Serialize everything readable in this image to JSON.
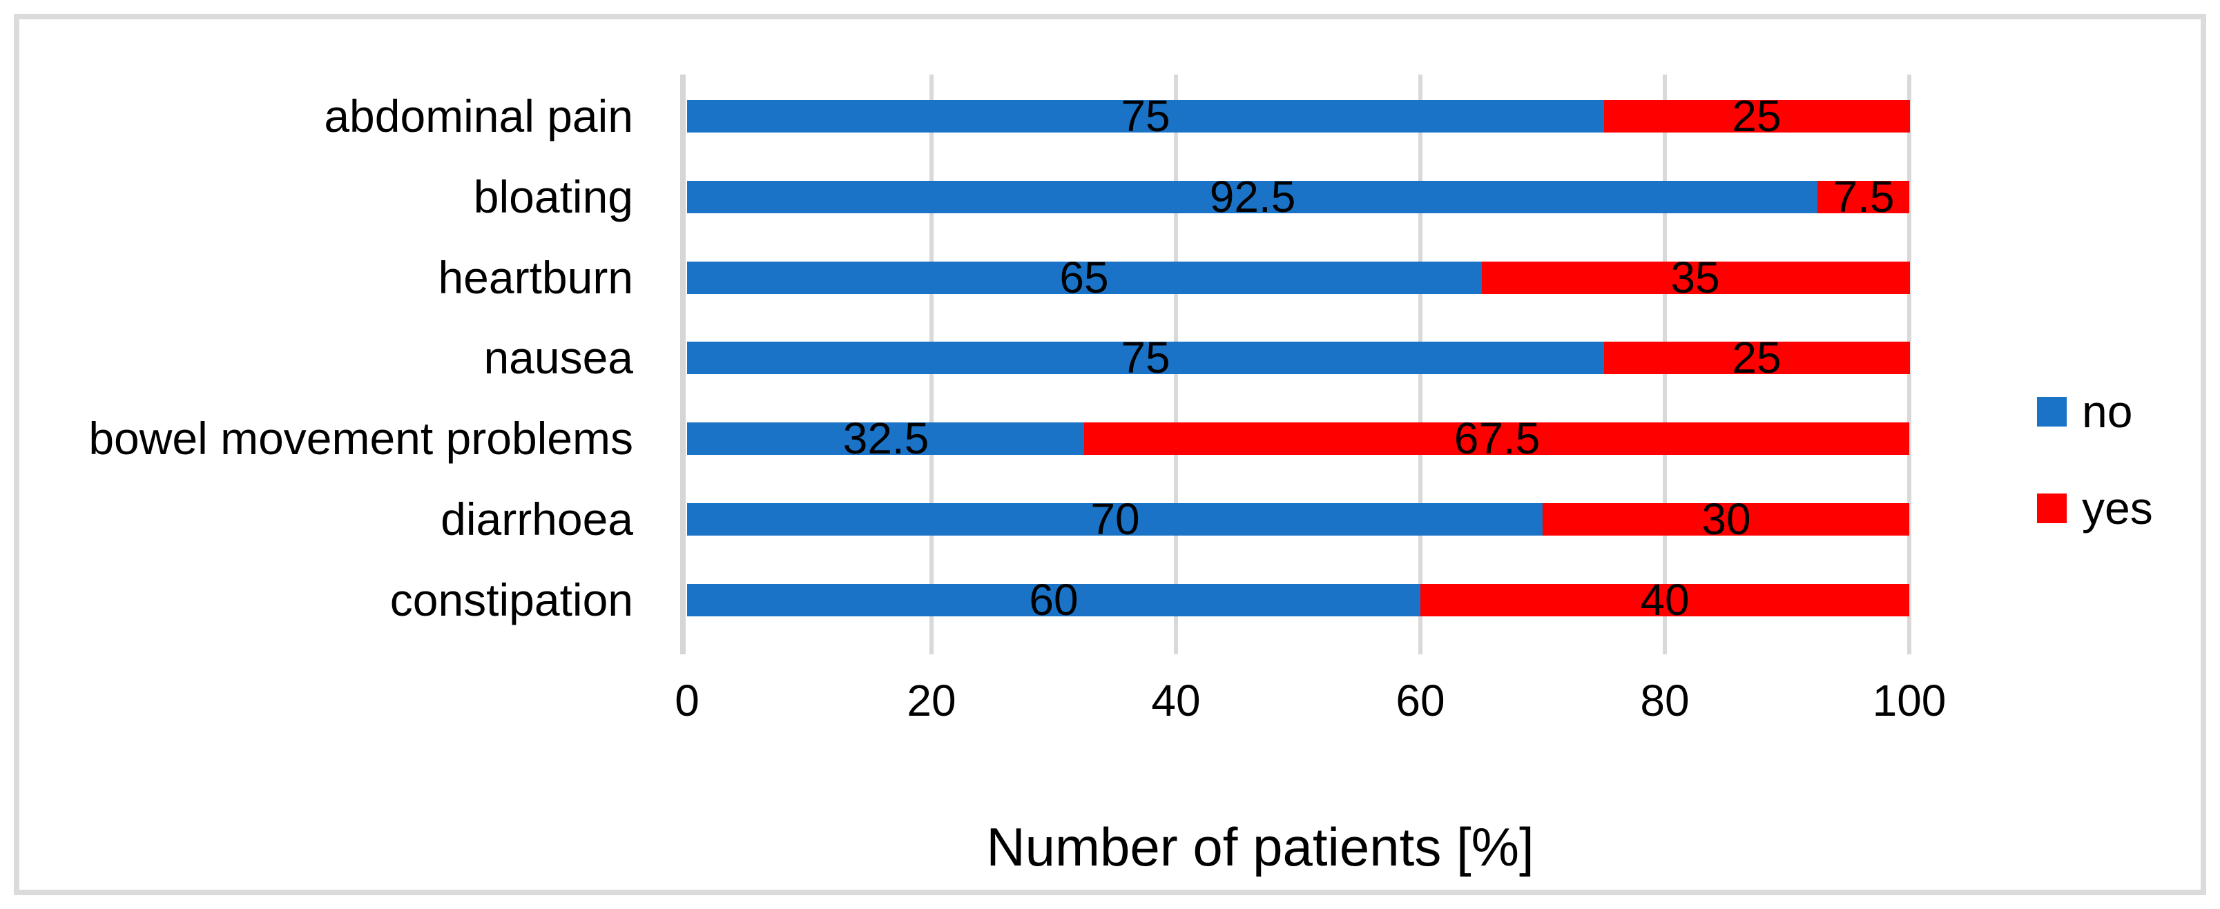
{
  "chart_data": {
    "type": "bar",
    "orientation": "horizontal",
    "stacked": true,
    "title": "",
    "xlabel": "Number of patients [%]",
    "ylabel": "",
    "xlim": [
      0,
      100
    ],
    "x_ticks": [
      0,
      20,
      40,
      60,
      80,
      100
    ],
    "grid": true,
    "gridline_color": "#D9D9D9",
    "frame_border_color": "#DBDBDB",
    "legend_position": "right",
    "data_labels": true,
    "categories": [
      "abdominal pain",
      "bloating",
      "heartburn",
      "nausea",
      "bowel movement problems",
      "diarrhoea",
      "constipation"
    ],
    "series": [
      {
        "name": "no",
        "color": "#1A73C6",
        "values": [
          75,
          92.5,
          65,
          75,
          32.5,
          70,
          60
        ]
      },
      {
        "name": "yes",
        "color": "#FF0000",
        "values": [
          25,
          7.5,
          35,
          25,
          67.5,
          30,
          40
        ]
      }
    ]
  }
}
